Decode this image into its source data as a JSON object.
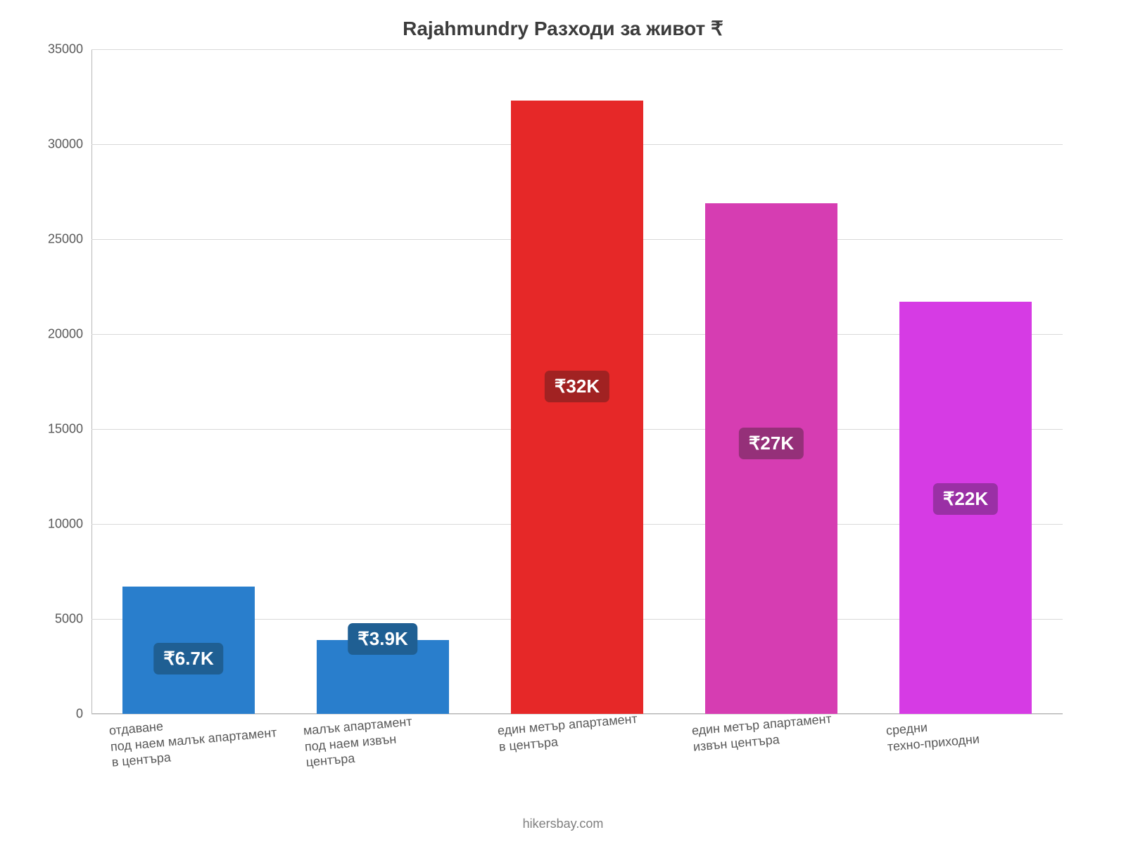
{
  "chart": {
    "type": "bar",
    "title": "Rajahmundry Разходи за живот ₹",
    "title_fontsize": 28,
    "title_color": "#3c3c3c",
    "label_fontsize": 18,
    "label_color": "#595959",
    "background_color": "#ffffff",
    "grid_color": "#d9d9d9",
    "ylim": [
      0,
      35000
    ],
    "ytick_step": 5000,
    "yticks": [
      0,
      5000,
      10000,
      15000,
      20000,
      25000,
      30000,
      35000
    ],
    "bar_width": 0.68,
    "categories": [
      "отдаване\nпод наем малък апартамент\nв центъра",
      "малък апартамент\nпод наем извън\nцентъра",
      "един метър апартамент\nв центъра",
      "един метър апартамент\nизвън центъра",
      "средни\nтехно-приходни"
    ],
    "values": [
      6700,
      3900,
      32300,
      26900,
      21700
    ],
    "value_labels": [
      "₹6.7K",
      "₹3.9K",
      "₹32K",
      "₹27K",
      "₹22K"
    ],
    "bar_colors": [
      "#297ecc",
      "#297ecc",
      "#e62828",
      "#d63db2",
      "#d63be4"
    ],
    "badge_colors": [
      "#1f5f93",
      "#1f5f93",
      "#a12222",
      "#953079",
      "#9a30a5"
    ],
    "badge_fontsize": 26,
    "footer": "hikersbay.com",
    "footer_color": "#808080"
  }
}
